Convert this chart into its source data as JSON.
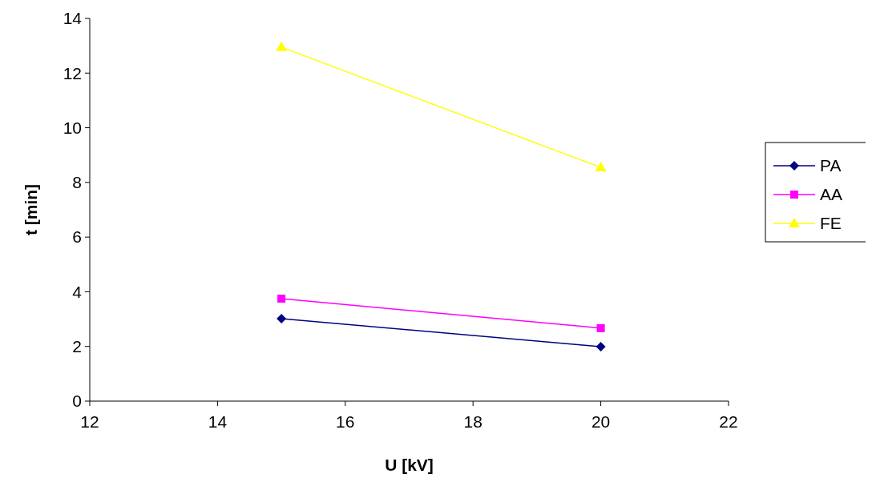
{
  "chart_data": {
    "type": "line",
    "xlabel": "U [kV]",
    "ylabel": "t [min]",
    "x": [
      15,
      20
    ],
    "series": [
      {
        "name": "PA",
        "color": "#000080",
        "marker": "diamond",
        "values": [
          3.02,
          1.99
        ]
      },
      {
        "name": "AA",
        "color": "#ff00ff",
        "marker": "square",
        "values": [
          3.75,
          2.67
        ]
      },
      {
        "name": "FE",
        "color": "#ffff00",
        "marker": "triangle",
        "values": [
          12.95,
          8.55
        ]
      }
    ],
    "xlim": [
      12,
      22
    ],
    "xticks": [
      12,
      14,
      16,
      18,
      20,
      22
    ],
    "ylim": [
      0,
      14
    ],
    "yticks": [
      0,
      2,
      4,
      6,
      8,
      10,
      12,
      14
    ],
    "grid": false,
    "legend": "right",
    "line_style": "solid"
  }
}
